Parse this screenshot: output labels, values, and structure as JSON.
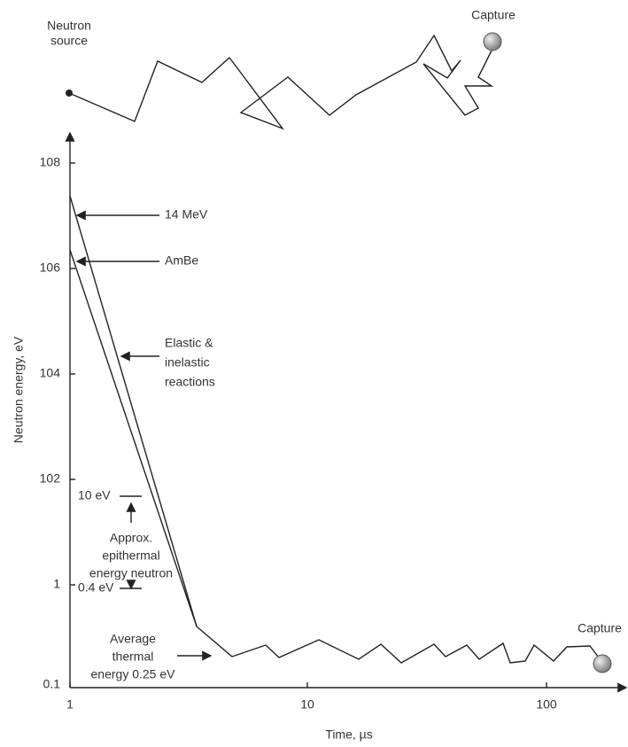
{
  "top_walk": {
    "start_label": [
      "Neutron",
      "source"
    ],
    "end_label": "Capture"
  },
  "axes": {
    "y_label": "Neutron energy, eV",
    "x_label": "Time, µs",
    "y_ticks": [
      "108",
      "106",
      "104",
      "102",
      "1",
      "0.1"
    ],
    "x_ticks": [
      "1",
      "10",
      "100"
    ]
  },
  "annotations": {
    "fast": "14 MeV",
    "ambe": "AmBe",
    "reactions": [
      "Elastic &",
      "inelastic",
      "reactions"
    ],
    "epithermal_top": "10 eV",
    "epithermal": [
      "Approx.",
      "epithermal",
      "energy neutron"
    ],
    "epithermal_bottom": "0.4 eV",
    "thermal": [
      "Average",
      "thermal",
      "energy 0.25 eV"
    ],
    "capture": "Capture"
  }
}
